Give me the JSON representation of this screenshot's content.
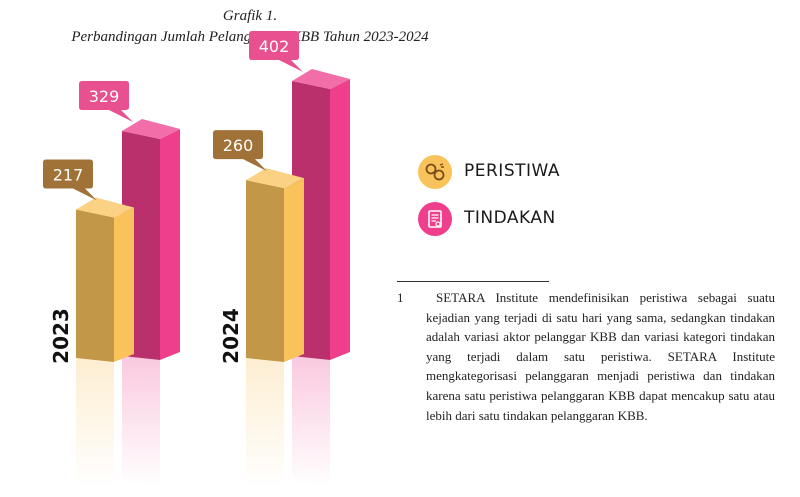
{
  "caption": {
    "line1": "Grafik 1.",
    "line2": "Perbandingan Jumlah Pelanggaran KBB Tahun 2023-2024"
  },
  "legend": [
    {
      "label": "PERISTIWA",
      "color": "#F9C25B",
      "icon": "handcuffs-icon"
    },
    {
      "label": "TINDAKAN",
      "color": "#EE3E8C",
      "icon": "document-icon"
    }
  ],
  "footnote": {
    "number": "1",
    "text": "SETARA Institute mendefinisikan peristiwa sebagai suatu kejadian yang terjadi di satu hari yang sama, sedangkan tindakan adalah variasi aktor pelanggar KBB dan variasi kategori tindakan yang terjadi dalam satu peristiwa. SETARA Institute mengkategorisasi pelanggaran menjadi peristiwa dan tindakan karena satu peristiwa pelanggaran KBB dapat mencakup satu atau lebih dari satu tindakan pelanggaran KBB."
  },
  "chart_data": {
    "type": "bar",
    "title": "Perbandingan Jumlah Pelanggaran KBB Tahun 2023-2024",
    "categories": [
      "2023",
      "2024"
    ],
    "series": [
      {
        "name": "PERISTIWA",
        "values": [
          217,
          260
        ],
        "color": "#F9C25B",
        "label_color": "#A07238"
      },
      {
        "name": "TINDAKAN",
        "values": [
          329,
          402
        ],
        "color": "#EE3E8C",
        "label_color": "#E8508F"
      }
    ],
    "ylim": [
      0,
      402
    ],
    "grid": false,
    "legend_position": "right"
  }
}
